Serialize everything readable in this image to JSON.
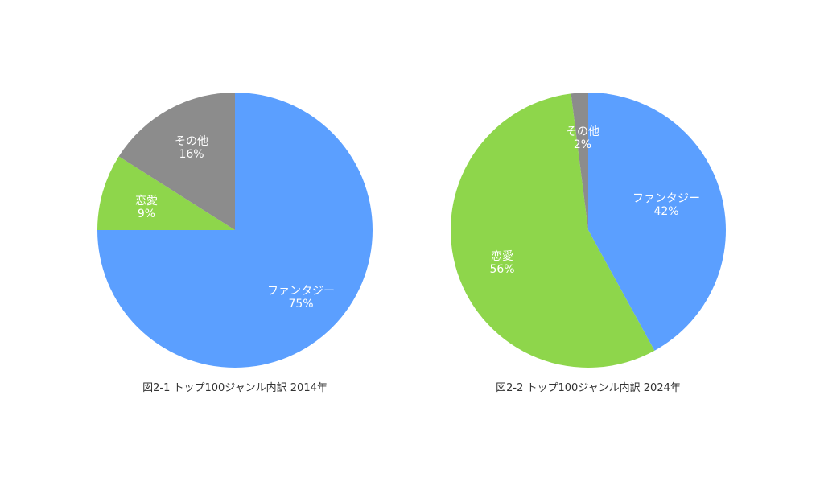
{
  "chart_data": [
    {
      "type": "pie",
      "title": "図2-1 トップ100ジャンル内訳 2014年",
      "slices": [
        {
          "label": "ファンタジー",
          "value": 75,
          "value_label": "75%",
          "color": "#5B9FFF"
        },
        {
          "label": "恋愛",
          "value": 9,
          "value_label": "9%",
          "color": "#8ED64B"
        },
        {
          "label": "その他",
          "value": 16,
          "value_label": "16%",
          "color": "#8C8C8C"
        }
      ]
    },
    {
      "type": "pie",
      "title": "図2-2 トップ100ジャンル内訳 2024年",
      "slices": [
        {
          "label": "ファンタジー",
          "value": 42,
          "value_label": "42%",
          "color": "#5B9FFF"
        },
        {
          "label": "恋愛",
          "value": 56,
          "value_label": "56%",
          "color": "#8ED64B"
        },
        {
          "label": "その他",
          "value": 2,
          "value_label": "2%",
          "color": "#8C8C8C"
        }
      ]
    }
  ]
}
